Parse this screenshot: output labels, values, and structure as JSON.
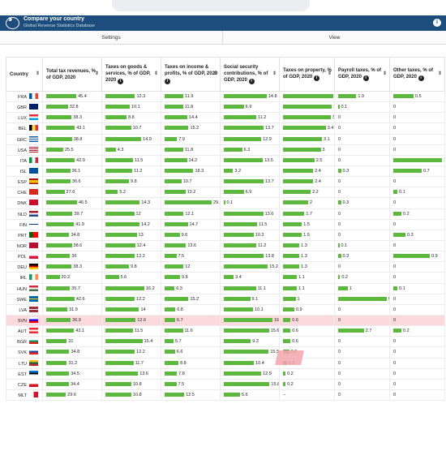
{
  "header": {
    "title": "Compare your country",
    "subtitle": "Global Revenue Statistics Database",
    "info_icon": "i"
  },
  "tabs": [
    "Settings",
    "View"
  ],
  "columns": [
    {
      "label": "Country",
      "info": false
    },
    {
      "label": "Total tax revenues, % of GDP, 2020",
      "info": false
    },
    {
      "label": "Taxes on goods & services, % of GDP, 2020",
      "info": true
    },
    {
      "label": "Taxes on income & profits, % of GDP, 2020",
      "info": true
    },
    {
      "label": "Social security contributions, % of GDP, 2020",
      "info": true
    },
    {
      "label": "Taxes on property, % of GDP, 2020",
      "info": true
    },
    {
      "label": "Payroll taxes, % of GDP, 2020",
      "info": true
    },
    {
      "label": "Other taxes, % of GDP, 2020",
      "info": true
    }
  ],
  "colors": {
    "bar": "#5cb93d",
    "highlight": "#fbd9dc",
    "header": "#1d4d7c"
  },
  "rows": [
    {
      "c": "FRA",
      "f": "fr",
      "v": [
        "45.4",
        "12.3",
        "11.9",
        "14.8",
        "4",
        "1.9",
        "0.5"
      ]
    },
    {
      "c": "GBR",
      "f": "gb",
      "v": [
        "32.8",
        "10.1",
        "11.8",
        "6.9",
        "3.9",
        "0.1",
        "0"
      ]
    },
    {
      "c": "LUX",
      "f": "lu",
      "v": [
        "38.3",
        "8.8",
        "14.4",
        "11.2",
        "3.8",
        "0",
        "0"
      ]
    },
    {
      "c": "BEL",
      "f": "be",
      "v": [
        "43.1",
        "10.7",
        "15.2",
        "13.7",
        "3.4",
        "0",
        "0"
      ]
    },
    {
      "c": "GRC",
      "f": "gr",
      "v": [
        "38.8",
        "14.9",
        "7.9",
        "12.9",
        "3.1",
        "0",
        "0"
      ]
    },
    {
      "c": "USA",
      "f": "us",
      "v": [
        "25.5",
        "4.3",
        "11.8",
        "6.3",
        "3",
        "0",
        "0"
      ]
    },
    {
      "c": "ITA",
      "f": "it",
      "v": [
        "42.9",
        "11.5",
        "14.2",
        "13.5",
        "2.5",
        "0",
        "1.2"
      ]
    },
    {
      "c": "ISL",
      "f": "is",
      "v": [
        "36.1",
        "11.2",
        "18.3",
        "3.2",
        "2.4",
        "0.3",
        "0.7"
      ]
    },
    {
      "c": "ESP",
      "f": "es",
      "v": [
        "36.6",
        "9.8",
        "10.7",
        "13.7",
        "2.4",
        "0",
        "0"
      ]
    },
    {
      "c": "CHE",
      "f": "ch",
      "v": [
        "27.6",
        "5.2",
        "13.2",
        "6.9",
        "2.2",
        "0",
        "0.1"
      ]
    },
    {
      "c": "DNK",
      "f": "dk",
      "v": [
        "46.5",
        "14.3",
        "29.9",
        "0.1",
        "2",
        "0.3",
        "0"
      ]
    },
    {
      "c": "NLD",
      "f": "nl",
      "v": [
        "39.7",
        "12",
        "12.1",
        "13.6",
        "1.7",
        "0",
        "0.2"
      ]
    },
    {
      "c": "FIN",
      "f": "fi",
      "v": [
        "41.9",
        "14.2",
        "14.7",
        "11.5",
        "1.5",
        "0",
        "0"
      ]
    },
    {
      "c": "PRT",
      "f": "pt",
      "v": [
        "34.8",
        "13",
        "9.6",
        "10.3",
        "1.5",
        "0",
        "0.3"
      ]
    },
    {
      "c": "NOR",
      "f": "no",
      "v": [
        "38.6",
        "12.4",
        "13.6",
        "11.2",
        "1.3",
        "0.1",
        "0"
      ]
    },
    {
      "c": "POL",
      "f": "pl",
      "v": [
        "36",
        "12.2",
        "7.5",
        "13.8",
        "1.3",
        "0.3",
        "0.9"
      ]
    },
    {
      "c": "DEU",
      "f": "de",
      "v": [
        "38.3",
        "9.8",
        "12",
        "15.2",
        "1.3",
        "0",
        "0"
      ]
    },
    {
      "c": "IRL",
      "f": "ie",
      "v": [
        "20.2",
        "5.6",
        "9.8",
        "3.4",
        "1.1",
        "0.2",
        "0"
      ]
    },
    {
      "c": "HUN",
      "f": "hu",
      "v": [
        "35.7",
        "16.2",
        "6.3",
        "11.1",
        "1.1",
        "1",
        "0.1"
      ]
    },
    {
      "c": "SWE",
      "f": "se",
      "v": [
        "42.6",
        "12.2",
        "15.2",
        "9.1",
        "1",
        "5.1",
        "0"
      ]
    },
    {
      "c": "LVA",
      "f": "lv",
      "v": [
        "31.9",
        "14",
        "6.8",
        "10.1",
        "0.9",
        "0",
        "0"
      ]
    },
    {
      "c": "SVN",
      "f": "si",
      "hl": true,
      "v": [
        "36.9",
        "12.6",
        "6.7",
        "16.8",
        "0.6",
        "0",
        "0"
      ]
    },
    {
      "c": "AUT",
      "f": "at",
      "v": [
        "42.1",
        "11.5",
        "11.6",
        "15.6",
        "0.6",
        "2.7",
        "0.2"
      ]
    },
    {
      "c": "BGR",
      "f": "bg",
      "v": [
        "31",
        "15.4",
        "5.7",
        "9.3",
        "0.6",
        "0",
        "0"
      ]
    },
    {
      "c": "SVK",
      "f": "sk",
      "v": [
        "34.8",
        "12.2",
        "6.6",
        "15.5",
        "0.5",
        "0",
        "0"
      ]
    },
    {
      "c": "LTU",
      "f": "lt",
      "v": [
        "31.2",
        "11.7",
        "8.8",
        "10.4",
        "0.3",
        "0",
        "0"
      ]
    },
    {
      "c": "EST",
      "f": "ee",
      "v": [
        "34.5",
        "13.6",
        "7.8",
        "12.9",
        "0.2",
        "0",
        "0"
      ]
    },
    {
      "c": "CZE",
      "f": "cz",
      "v": [
        "34.4",
        "10.8",
        "7.5",
        "15.8",
        "0.2",
        "0",
        "0"
      ]
    },
    {
      "c": "MLT",
      "f": "mt",
      "v": [
        "29.6",
        "10.8",
        "12.5",
        "5.6",
        "–",
        "0",
        "0"
      ]
    }
  ]
}
